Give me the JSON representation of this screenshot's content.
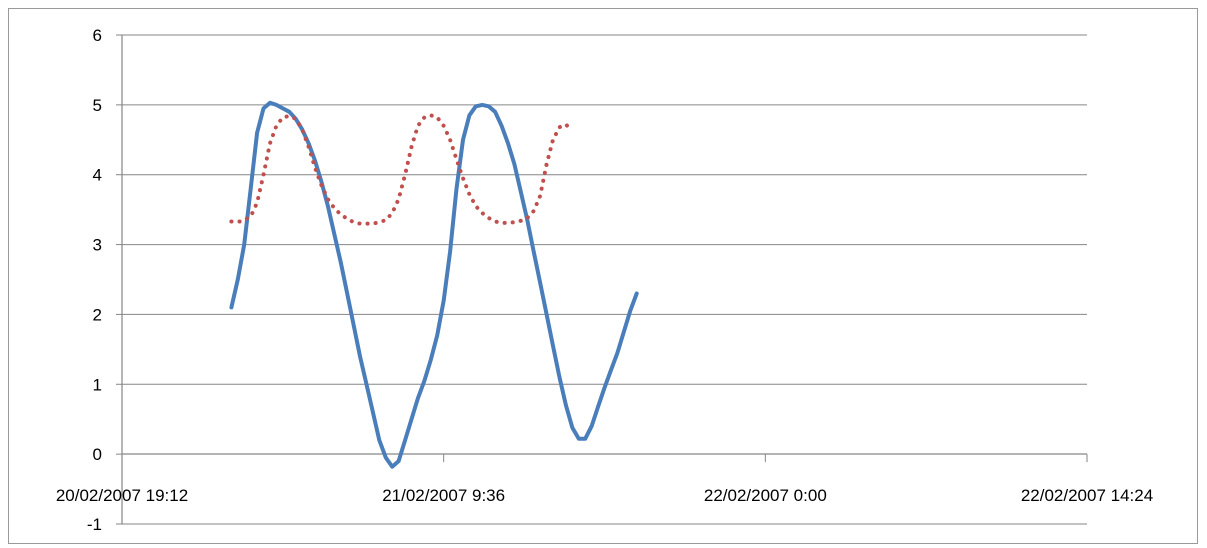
{
  "chart_data": {
    "type": "line",
    "title": "",
    "xlabel": "",
    "ylabel": "",
    "x_axis": {
      "ticks": [
        "20/02/2007 19:12",
        "21/02/2007 9:36",
        "22/02/2007 0:00",
        "22/02/2007 14:24"
      ],
      "range": [
        0,
        3
      ]
    },
    "y_axis": {
      "ticks": [
        "6",
        "5",
        "4",
        "3",
        "2",
        "1",
        "0",
        "-1"
      ],
      "range": [
        -1,
        6
      ]
    },
    "grid": "horizontal",
    "legend": "none",
    "series": [
      {
        "style": "solid",
        "color": "#4a7ebb",
        "points": [
          [
            0.34,
            2.1
          ],
          [
            0.36,
            2.5
          ],
          [
            0.38,
            3.0
          ],
          [
            0.4,
            3.8
          ],
          [
            0.42,
            4.6
          ],
          [
            0.44,
            4.95
          ],
          [
            0.46,
            5.03
          ],
          [
            0.48,
            5.0
          ],
          [
            0.5,
            4.95
          ],
          [
            0.52,
            4.9
          ],
          [
            0.54,
            4.8
          ],
          [
            0.56,
            4.65
          ],
          [
            0.58,
            4.45
          ],
          [
            0.6,
            4.2
          ],
          [
            0.62,
            3.9
          ],
          [
            0.64,
            3.55
          ],
          [
            0.66,
            3.15
          ],
          [
            0.68,
            2.75
          ],
          [
            0.7,
            2.3
          ],
          [
            0.72,
            1.85
          ],
          [
            0.74,
            1.4
          ],
          [
            0.76,
            1.0
          ],
          [
            0.78,
            0.6
          ],
          [
            0.8,
            0.2
          ],
          [
            0.82,
            -0.05
          ],
          [
            0.84,
            -0.18
          ],
          [
            0.86,
            -0.1
          ],
          [
            0.88,
            0.2
          ],
          [
            0.9,
            0.5
          ],
          [
            0.92,
            0.8
          ],
          [
            0.94,
            1.05
          ],
          [
            0.96,
            1.35
          ],
          [
            0.98,
            1.7
          ],
          [
            1.0,
            2.2
          ],
          [
            1.02,
            2.9
          ],
          [
            1.04,
            3.8
          ],
          [
            1.06,
            4.5
          ],
          [
            1.08,
            4.85
          ],
          [
            1.1,
            4.98
          ],
          [
            1.12,
            5.0
          ],
          [
            1.14,
            4.98
          ],
          [
            1.16,
            4.9
          ],
          [
            1.18,
            4.7
          ],
          [
            1.2,
            4.45
          ],
          [
            1.22,
            4.15
          ],
          [
            1.24,
            3.75
          ],
          [
            1.26,
            3.35
          ],
          [
            1.28,
            2.9
          ],
          [
            1.3,
            2.45
          ],
          [
            1.32,
            2.0
          ],
          [
            1.34,
            1.55
          ],
          [
            1.36,
            1.1
          ],
          [
            1.38,
            0.7
          ],
          [
            1.4,
            0.38
          ],
          [
            1.42,
            0.22
          ],
          [
            1.44,
            0.22
          ],
          [
            1.46,
            0.4
          ],
          [
            1.48,
            0.68
          ],
          [
            1.5,
            0.95
          ],
          [
            1.52,
            1.2
          ],
          [
            1.54,
            1.45
          ],
          [
            1.56,
            1.75
          ],
          [
            1.58,
            2.05
          ],
          [
            1.6,
            2.3
          ]
        ]
      },
      {
        "style": "dotted",
        "color": "#c0504d",
        "points": [
          [
            0.34,
            3.33
          ],
          [
            0.37,
            3.33
          ],
          [
            0.4,
            3.4
          ],
          [
            0.42,
            3.6
          ],
          [
            0.44,
            4.0
          ],
          [
            0.46,
            4.45
          ],
          [
            0.48,
            4.7
          ],
          [
            0.5,
            4.82
          ],
          [
            0.52,
            4.84
          ],
          [
            0.54,
            4.8
          ],
          [
            0.56,
            4.65
          ],
          [
            0.58,
            4.4
          ],
          [
            0.6,
            4.1
          ],
          [
            0.62,
            3.85
          ],
          [
            0.64,
            3.65
          ],
          [
            0.66,
            3.52
          ],
          [
            0.68,
            3.43
          ],
          [
            0.7,
            3.37
          ],
          [
            0.72,
            3.32
          ],
          [
            0.74,
            3.3
          ],
          [
            0.76,
            3.3
          ],
          [
            0.78,
            3.3
          ],
          [
            0.8,
            3.32
          ],
          [
            0.82,
            3.35
          ],
          [
            0.84,
            3.45
          ],
          [
            0.86,
            3.65
          ],
          [
            0.88,
            4.0
          ],
          [
            0.9,
            4.4
          ],
          [
            0.92,
            4.7
          ],
          [
            0.94,
            4.82
          ],
          [
            0.96,
            4.85
          ],
          [
            0.98,
            4.82
          ],
          [
            1.0,
            4.7
          ],
          [
            1.02,
            4.5
          ],
          [
            1.04,
            4.22
          ],
          [
            1.06,
            3.95
          ],
          [
            1.08,
            3.72
          ],
          [
            1.1,
            3.55
          ],
          [
            1.12,
            3.45
          ],
          [
            1.14,
            3.38
          ],
          [
            1.16,
            3.33
          ],
          [
            1.18,
            3.31
          ],
          [
            1.2,
            3.31
          ],
          [
            1.22,
            3.32
          ],
          [
            1.24,
            3.34
          ],
          [
            1.26,
            3.38
          ],
          [
            1.28,
            3.48
          ],
          [
            1.3,
            3.7
          ],
          [
            1.32,
            4.15
          ],
          [
            1.34,
            4.5
          ],
          [
            1.36,
            4.68
          ],
          [
            1.38,
            4.72
          ],
          [
            1.4,
            4.62
          ]
        ]
      }
    ]
  }
}
